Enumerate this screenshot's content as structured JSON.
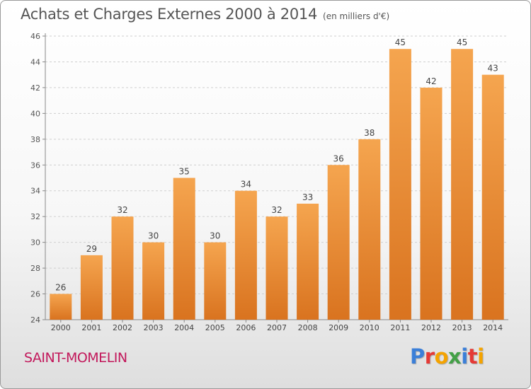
{
  "chart_data": {
    "type": "bar",
    "title": "Achats et Charges Externes 2000 à 2014",
    "subtitle": "(en milliers d'€)",
    "categories": [
      "2000",
      "2001",
      "2002",
      "2003",
      "2004",
      "2005",
      "2006",
      "2007",
      "2008",
      "2009",
      "2010",
      "2011",
      "2012",
      "2013",
      "2014"
    ],
    "values": [
      26,
      29,
      32,
      30,
      35,
      30,
      34,
      32,
      33,
      36,
      38,
      45,
      42,
      45,
      43
    ],
    "ylim": [
      24,
      46
    ],
    "yticks": [
      24,
      26,
      28,
      30,
      32,
      34,
      36,
      38,
      40,
      42,
      44,
      46
    ],
    "grid": true,
    "bar_color_top": "#f5a54f",
    "bar_color_bottom": "#d9731f"
  },
  "footer": {
    "city": "SAINT-MOMELIN",
    "city_color": "#c2185b"
  },
  "logo": {
    "text": "Proxiti",
    "letters": [
      {
        "ch": "P",
        "color": "#3b7fd8"
      },
      {
        "ch": "r",
        "color": "#e53935"
      },
      {
        "ch": "o",
        "color": "#f4a300"
      },
      {
        "ch": "x",
        "color": "#43a047"
      },
      {
        "ch": "i",
        "color": "#3b7fd8"
      },
      {
        "ch": "t",
        "color": "#e53935"
      },
      {
        "ch": "i",
        "color": "#f4a300"
      }
    ]
  }
}
